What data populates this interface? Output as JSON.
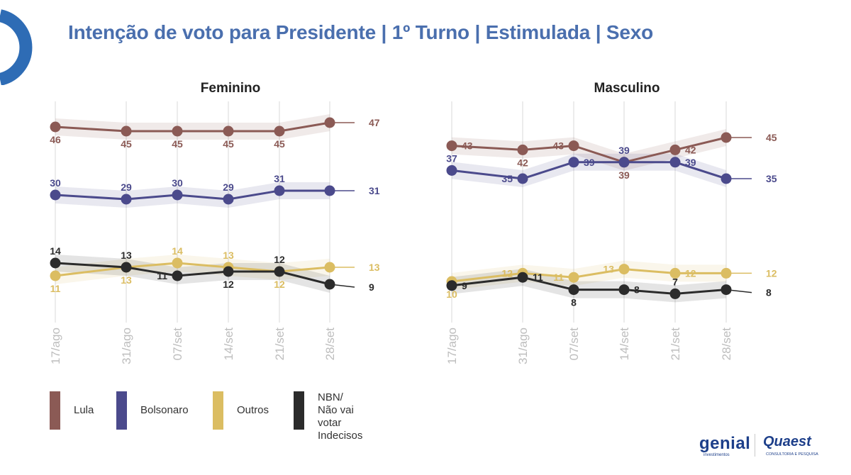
{
  "page": {
    "title": "Intenção de voto para Presidente | 1º Turno | Estimulada | Sexo"
  },
  "colors": {
    "lula": "#8b5a55",
    "bolsonaro": "#4b4a8c",
    "outros": "#dbbd62",
    "nbn": "#2b2b2b",
    "title": "#4a6fae",
    "accent_arc": "#2e6cb5"
  },
  "legend": [
    {
      "label": "Lula",
      "color": "#8b5a55"
    },
    {
      "label": "Bolsonaro",
      "color": "#4b4a8c"
    },
    {
      "label": "Outros",
      "color": "#dbbd62"
    },
    {
      "label": "NBN/\nNão vai votar\nIndecisos",
      "color": "#2b2b2b"
    }
  ],
  "logos": {
    "genial": "genial",
    "genial_sub": "investimentos",
    "quaest": "Quaest",
    "quaest_sub": "CONSULTORIA E PESQUISA"
  },
  "chart_data": [
    {
      "type": "line",
      "title": "Feminino",
      "x": [
        "17/ago",
        "31/ago",
        "07/set",
        "14/set",
        "21/set",
        "28/set"
      ],
      "series": [
        {
          "name": "Lula",
          "values": [
            46,
            45,
            45,
            45,
            45,
            47
          ]
        },
        {
          "name": "Bolsonaro",
          "values": [
            30,
            29,
            30,
            29,
            31,
            31
          ]
        },
        {
          "name": "Outros",
          "values": [
            11,
            13,
            14,
            13,
            12,
            13
          ]
        },
        {
          "name": "NBN/Não vai votar Indecisos",
          "values": [
            14,
            13,
            11,
            12,
            12,
            9
          ]
        }
      ]
    },
    {
      "type": "line",
      "title": "Masculino",
      "x": [
        "17/ago",
        "31/ago",
        "07/set",
        "14/set",
        "21/set",
        "28/set"
      ],
      "series": [
        {
          "name": "Lula",
          "values": [
            43,
            42,
            43,
            39,
            42,
            45
          ]
        },
        {
          "name": "Bolsonaro",
          "values": [
            37,
            35,
            39,
            39,
            39,
            35
          ]
        },
        {
          "name": "Outros",
          "values": [
            10,
            12,
            11,
            13,
            12,
            12
          ]
        },
        {
          "name": "NBN/Não vai votar Indecisos",
          "values": [
            9,
            11,
            8,
            8,
            7,
            8
          ]
        }
      ]
    }
  ]
}
